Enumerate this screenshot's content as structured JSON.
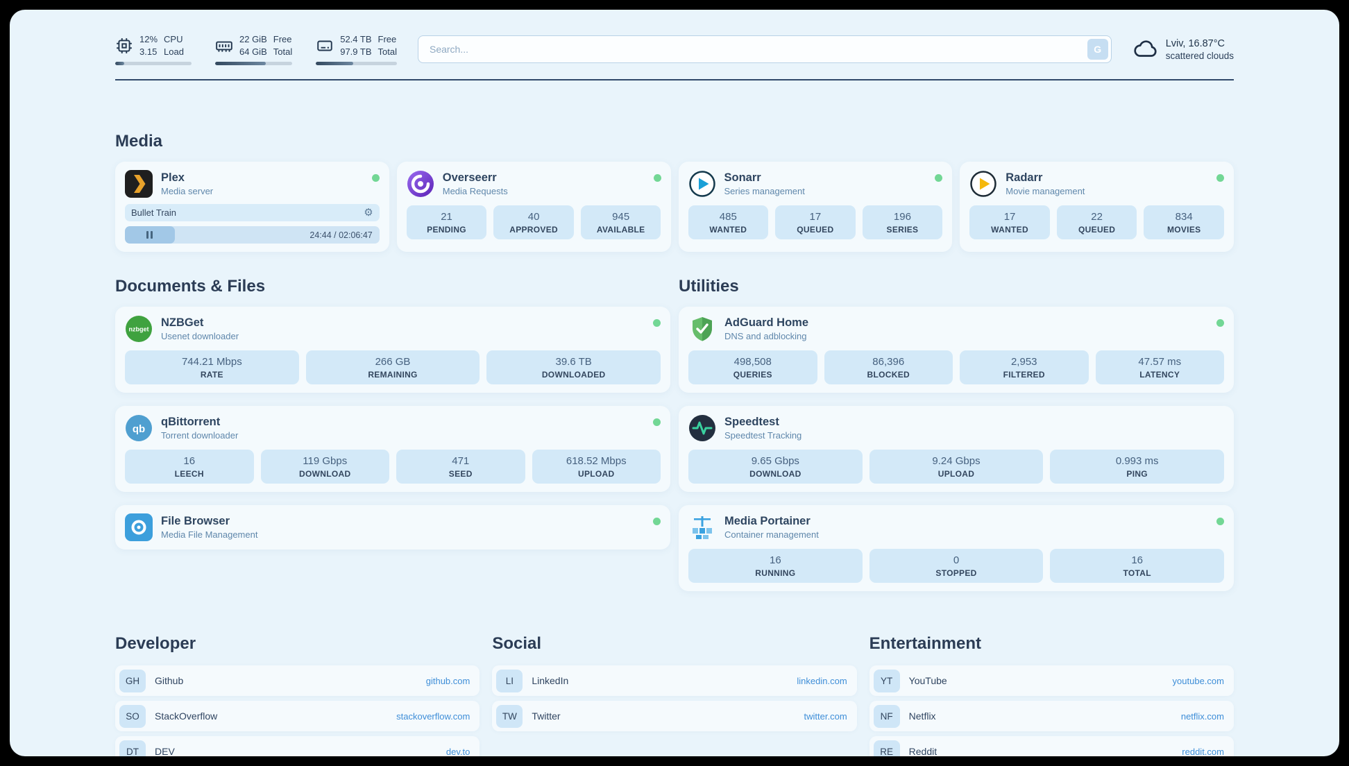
{
  "topbar": {
    "cpu": {
      "value_top": "12%",
      "value_bottom": "3.15",
      "label_top": "CPU",
      "label_bottom": "Load",
      "progress_percent": 12
    },
    "ram": {
      "value_top": "22 GiB",
      "value_bottom": "64 GiB",
      "label_top": "Free",
      "label_bottom": "Total",
      "progress_percent": 66
    },
    "disk": {
      "value_top": "52.4 TB",
      "value_bottom": "97.9 TB",
      "label_top": "Free",
      "label_bottom": "Total",
      "progress_percent": 46
    },
    "search": {
      "placeholder": "Search...",
      "engine_button": "G"
    },
    "weather": {
      "location": "Lviv, 16.87°C",
      "condition": "scattered clouds"
    }
  },
  "sections": {
    "media": {
      "title": "Media",
      "plex": {
        "title": "Plex",
        "subtitle": "Media server",
        "now_playing": "Bullet Train",
        "time": "24:44 / 02:06:47",
        "progress_percent": 19.5
      },
      "overseerr": {
        "title": "Overseerr",
        "subtitle": "Media Requests",
        "stats": [
          {
            "value": "21",
            "label": "PENDING"
          },
          {
            "value": "40",
            "label": "APPROVED"
          },
          {
            "value": "945",
            "label": "AVAILABLE"
          }
        ]
      },
      "sonarr": {
        "title": "Sonarr",
        "subtitle": "Series management",
        "stats": [
          {
            "value": "485",
            "label": "WANTED"
          },
          {
            "value": "17",
            "label": "QUEUED"
          },
          {
            "value": "196",
            "label": "SERIES"
          }
        ]
      },
      "radarr": {
        "title": "Radarr",
        "subtitle": "Movie management",
        "stats": [
          {
            "value": "17",
            "label": "WANTED"
          },
          {
            "value": "22",
            "label": "QUEUED"
          },
          {
            "value": "834",
            "label": "MOVIES"
          }
        ]
      }
    },
    "documents": {
      "title": "Documents & Files",
      "nzbget": {
        "title": "NZBGet",
        "subtitle": "Usenet downloader",
        "stats": [
          {
            "value": "744.21 Mbps",
            "label": "RATE"
          },
          {
            "value": "266 GB",
            "label": "REMAINING"
          },
          {
            "value": "39.6 TB",
            "label": "DOWNLOADED"
          }
        ]
      },
      "qbittorrent": {
        "title": "qBittorrent",
        "subtitle": "Torrent downloader",
        "stats": [
          {
            "value": "16",
            "label": "LEECH"
          },
          {
            "value": "119 Gbps",
            "label": "DOWNLOAD"
          },
          {
            "value": "471",
            "label": "SEED"
          },
          {
            "value": "618.52 Mbps",
            "label": "UPLOAD"
          }
        ]
      },
      "filebrowser": {
        "title": "File Browser",
        "subtitle": "Media File Management"
      }
    },
    "utilities": {
      "title": "Utilities",
      "adguard": {
        "title": "AdGuard Home",
        "subtitle": "DNS and adblocking",
        "stats": [
          {
            "value": "498,508",
            "label": "QUERIES"
          },
          {
            "value": "86,396",
            "label": "BLOCKED"
          },
          {
            "value": "2,953",
            "label": "FILTERED"
          },
          {
            "value": "47.57 ms",
            "label": "LATENCY"
          }
        ]
      },
      "speedtest": {
        "title": "Speedtest",
        "subtitle": "Speedtest Tracking",
        "stats": [
          {
            "value": "9.65 Gbps",
            "label": "DOWNLOAD"
          },
          {
            "value": "9.24 Gbps",
            "label": "UPLOAD"
          },
          {
            "value": "0.993 ms",
            "label": "PING"
          }
        ]
      },
      "portainer": {
        "title": "Media Portainer",
        "subtitle": "Container management",
        "stats": [
          {
            "value": "16",
            "label": "RUNNING"
          },
          {
            "value": "0",
            "label": "STOPPED"
          },
          {
            "value": "16",
            "label": "TOTAL"
          }
        ]
      }
    },
    "bookmarks": {
      "developer": {
        "title": "Developer",
        "links": [
          {
            "abbr": "GH",
            "name": "Github",
            "url": "github.com"
          },
          {
            "abbr": "SO",
            "name": "StackOverflow",
            "url": "stackoverflow.com"
          },
          {
            "abbr": "DT",
            "name": "DEV",
            "url": "dev.to"
          }
        ]
      },
      "social": {
        "title": "Social",
        "links": [
          {
            "abbr": "LI",
            "name": "LinkedIn",
            "url": "linkedin.com"
          },
          {
            "abbr": "TW",
            "name": "Twitter",
            "url": "twitter.com"
          }
        ]
      },
      "entertainment": {
        "title": "Entertainment",
        "links": [
          {
            "abbr": "YT",
            "name": "YouTube",
            "url": "youtube.com"
          },
          {
            "abbr": "NF",
            "name": "Netflix",
            "url": "netflix.com"
          },
          {
            "abbr": "RE",
            "name": "Reddit",
            "url": "reddit.com"
          }
        ]
      }
    }
  },
  "icons": {
    "gear": "⚙",
    "nzbget_wordmark": "nzbget",
    "qbittorrent_monogram": "qb"
  },
  "colors": {
    "page_bg": "#e9f4fb",
    "status_online": "#72d795",
    "link_blue": "#3e8ed8",
    "stat_chip_bg": "#d3e9f8"
  }
}
